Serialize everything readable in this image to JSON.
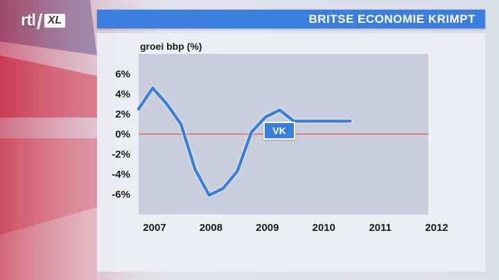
{
  "logo": {
    "brand": "rtl",
    "channel": "XL"
  },
  "header": {
    "title": "BRITSE ECONOMIE KRIMPT"
  },
  "colors": {
    "accent": "#3a7fe0",
    "zero_line": "#e05050",
    "plot_bg": "#c9cedd"
  },
  "chart_data": {
    "type": "line",
    "title": "BRITSE ECONOMIE KRIMPT",
    "ylabel": "groei bbp (%)",
    "xlabel": "",
    "ylim": [
      -8,
      8
    ],
    "y_ticks": [
      "6%",
      "4%",
      "2%",
      "0%",
      "-2%",
      "-4%",
      "-6%"
    ],
    "y_tick_values": [
      6,
      4,
      2,
      0,
      -2,
      -4,
      -6
    ],
    "x_ticks": [
      "2007",
      "2008",
      "2009",
      "2010",
      "2011",
      "2012"
    ],
    "x_tick_values": [
      2007,
      2008,
      2009,
      2010,
      2011,
      2012
    ],
    "xlim": [
      2007,
      2012
    ],
    "grid": false,
    "series": [
      {
        "name": "VK",
        "color": "#3a7fe0",
        "x": [
          2007.0,
          2007.25,
          2007.5,
          2007.75,
          2008.0,
          2008.25,
          2008.5,
          2008.75,
          2009.0,
          2009.25,
          2009.5,
          2009.75,
          2010.0,
          2010.25,
          2010.5,
          2010.75
        ],
        "values": [
          2.5,
          4.6,
          3.0,
          1.0,
          -3.5,
          -6.1,
          -5.4,
          -3.7,
          0.2,
          1.7,
          2.4,
          1.3,
          1.3,
          1.3,
          1.3,
          1.3
        ]
      }
    ],
    "annotations": [
      {
        "text": "VK"
      }
    ]
  }
}
